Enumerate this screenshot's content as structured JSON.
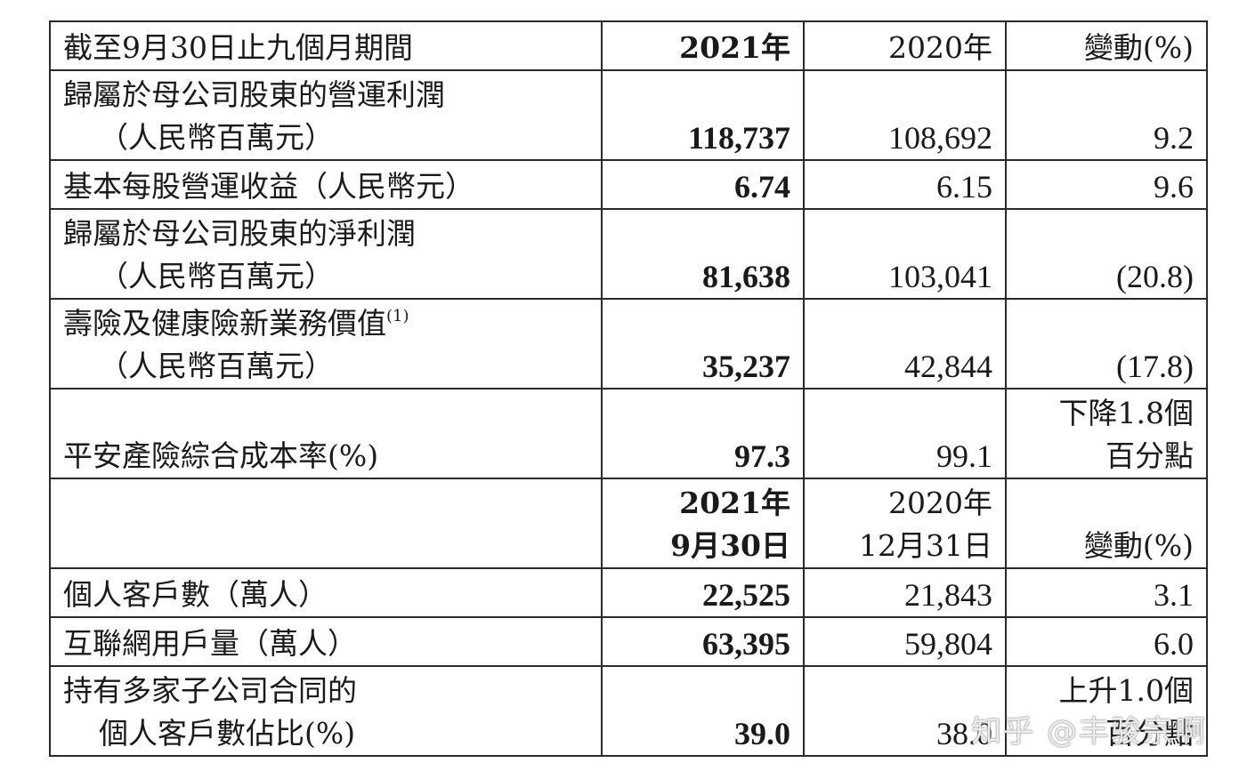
{
  "header": {
    "period": "截至9月30日止九個月期間",
    "col_2021": "2021年",
    "col_2020": "2020年",
    "col_change": "變動(%)"
  },
  "rows": [
    {
      "label_line1": "歸屬於母公司股東的營運利潤",
      "label_line2": "（人民幣百萬元）",
      "v2021": "118,737",
      "v2020": "108,692",
      "change": "9.2"
    },
    {
      "label_line1": "基本每股營運收益（人民幣元）",
      "v2021": "6.74",
      "v2020": "6.15",
      "change": "9.6"
    },
    {
      "label_line1": "歸屬於母公司股東的淨利潤",
      "label_line2": "（人民幣百萬元）",
      "v2021": "81,638",
      "v2020": "103,041",
      "change": "(20.8)"
    },
    {
      "label_line1": "壽險及健康險新業務價值",
      "footnote": "(1)",
      "label_line2": "（人民幣百萬元）",
      "v2021": "35,237",
      "v2020": "42,844",
      "change": "(17.8)"
    },
    {
      "label_line1": "平安產險綜合成本率(%)",
      "v2021": "97.3",
      "v2020": "99.1",
      "change_line1": "下降1.8個",
      "change_line2": "百分點"
    }
  ],
  "subheader": {
    "col_2021_line1": "2021年",
    "col_2021_line2": "9月30日",
    "col_2020_line1": "2020年",
    "col_2020_line2": "12月31日",
    "col_change": "變動(%)"
  },
  "rows2": [
    {
      "label_line1": "個人客戶數（萬人）",
      "v2021": "22,525",
      "v2020": "21,843",
      "change": "3.1"
    },
    {
      "label_line1": "互聯網用戶量（萬人）",
      "v2021": "63,395",
      "v2020": "59,804",
      "change": "6.0"
    },
    {
      "label_line1": "持有多家子公司合同的",
      "label_line2": "個人客戶數佔比(%)",
      "v2021": "39.0",
      "v2020": "38.0",
      "change_line1": "上升1.0個",
      "change_line2": "百分點"
    }
  ],
  "watermark": "知乎 @丰骏宗啊"
}
